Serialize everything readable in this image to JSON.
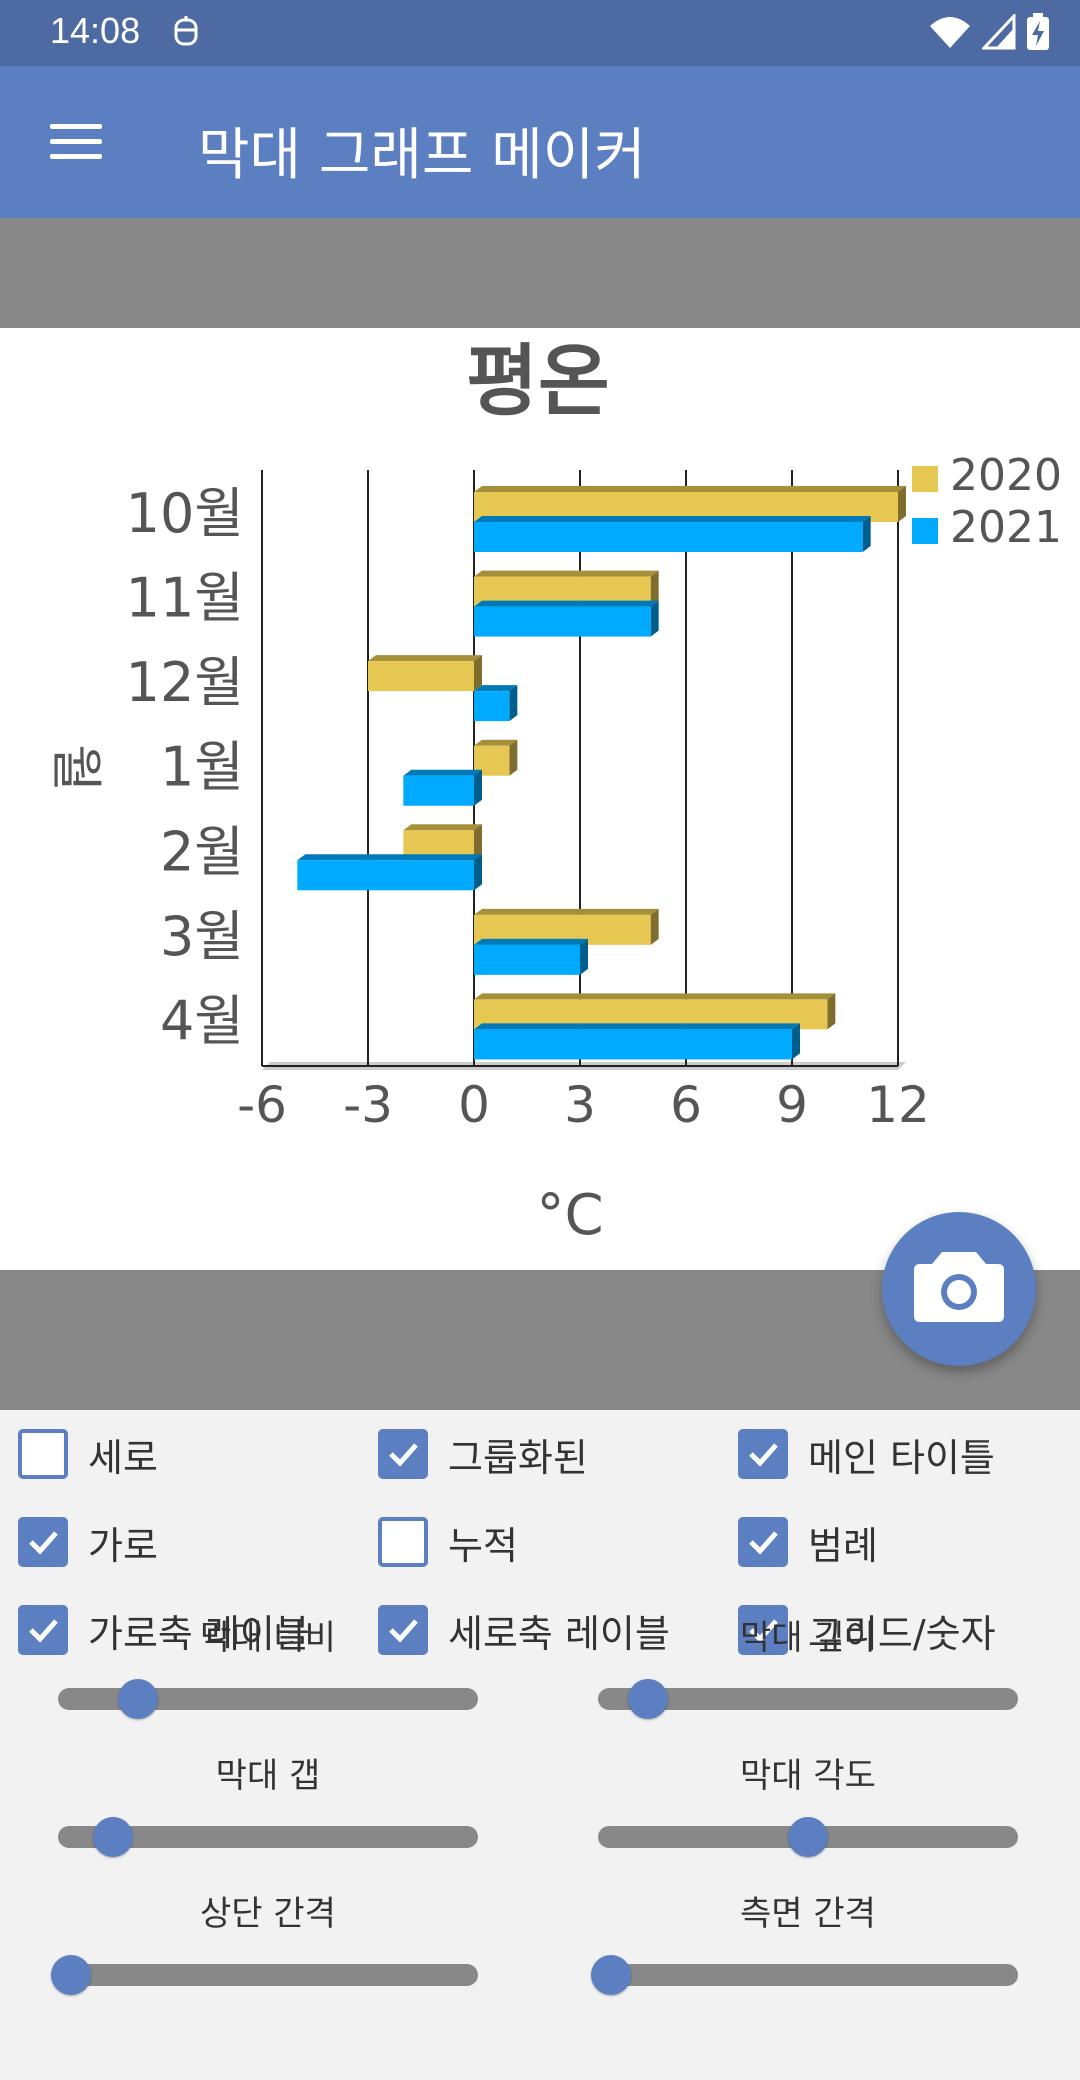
{
  "status_bar": {
    "time": "14:08"
  },
  "app_bar": {
    "title": "막대 그래프 메이커"
  },
  "chart_data": {
    "type": "bar",
    "orientation": "horizontal",
    "title": "평온",
    "xlabel": "°C",
    "ylabel": "월",
    "categories": [
      "10월",
      "11월",
      "12월",
      "1월",
      "2월",
      "3월",
      "4월"
    ],
    "series": [
      {
        "name": "2020",
        "color": "#e5c752",
        "values": [
          12,
          5,
          -3,
          1,
          -2,
          5,
          10
        ]
      },
      {
        "name": "2021",
        "color": "#00aaff",
        "values": [
          11,
          5,
          1,
          -2,
          -5,
          3,
          9
        ]
      }
    ],
    "xlim": [
      -6,
      12
    ],
    "xticks": [
      "-6",
      "-3",
      "0",
      "3",
      "6",
      "9",
      "12"
    ],
    "grid": true,
    "legend": "top-right"
  },
  "controls": {
    "checkboxes": [
      {
        "label": "세로",
        "checked": false
      },
      {
        "label": "그룹화된",
        "checked": true
      },
      {
        "label": "메인 타이틀",
        "checked": true
      },
      {
        "label": "가로",
        "checked": true
      },
      {
        "label": "누적",
        "checked": false
      },
      {
        "label": "범례",
        "checked": true
      },
      {
        "label": "가로축 레이블",
        "checked": true
      },
      {
        "label": "세로축 레이블",
        "checked": true
      },
      {
        "label": "그리드/숫자",
        "checked": true
      }
    ],
    "sliders": [
      {
        "label": "막대 너비",
        "value": 0.19
      },
      {
        "label": "막대 깊이",
        "value": 0.12
      },
      {
        "label": "막대 갭",
        "value": 0.13
      },
      {
        "label": "막대 각도",
        "value": 0.5
      },
      {
        "label": "상단 간격",
        "value": 0.03
      },
      {
        "label": "측면 간격",
        "value": 0.03
      }
    ]
  }
}
